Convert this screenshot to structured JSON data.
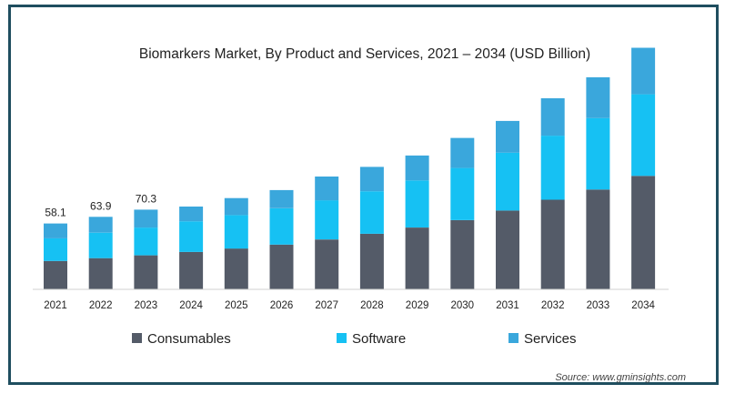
{
  "chart_data": {
    "type": "bar",
    "stacked": true,
    "title": "Biomarkers Market, By Product and Services, 2021 – 2034 (USD Billion)",
    "categories": [
      "2021",
      "2022",
      "2023",
      "2024",
      "2025",
      "2026",
      "2027",
      "2028",
      "2029",
      "2030",
      "2031",
      "2032",
      "2033",
      "2034"
    ],
    "series": [
      {
        "name": "Consumables",
        "color": "#545b68",
        "values": [
          25.0,
          27.5,
          30.0,
          33.0,
          36.0,
          39.5,
          44.0,
          49.0,
          54.5,
          61.0,
          69.5,
          79.0,
          88.0,
          100.0
        ]
      },
      {
        "name": "Software",
        "color": "#16c1f3",
        "values": [
          20.0,
          22.5,
          24.5,
          27.0,
          29.5,
          32.0,
          34.5,
          37.5,
          41.5,
          46.0,
          51.0,
          56.5,
          63.0,
          72.0
        ]
      },
      {
        "name": "Services",
        "color": "#3aa7dc",
        "values": [
          13.1,
          13.9,
          15.8,
          13.0,
          15.0,
          16.0,
          21.0,
          21.5,
          22.0,
          26.5,
          28.0,
          33.0,
          36.0,
          41.0
        ]
      }
    ],
    "data_labels": [
      "58.1",
      "63.9",
      "70.3"
    ],
    "ylim": [
      0,
      215
    ],
    "legend": "bottom",
    "grid": false
  },
  "source": "Source: www.gminsights.com"
}
